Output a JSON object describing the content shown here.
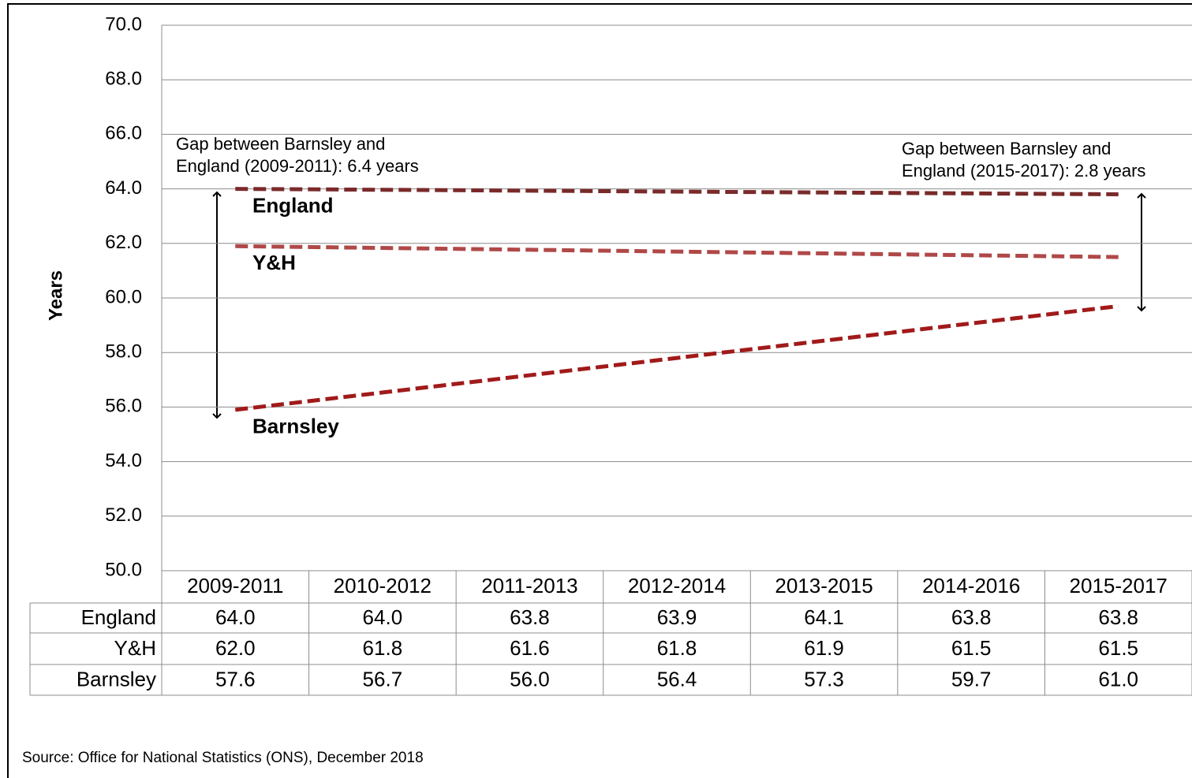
{
  "chart_data": {
    "type": "line",
    "y_label": "Years",
    "categories": [
      "2009-2011",
      "2010-2012",
      "2011-2013",
      "2012-2014",
      "2013-2015",
      "2014-2016",
      "2015-2017"
    ],
    "series": [
      {
        "name": "England",
        "color": "#7a2a2a",
        "values": [
          64.0,
          64.0,
          63.8,
          63.9,
          64.1,
          63.8,
          63.8
        ],
        "value_labels": [
          "64.0",
          "64.0",
          "63.8",
          "63.9",
          "64.1",
          "63.8",
          "63.8"
        ],
        "trend": [
          64.0,
          63.8
        ]
      },
      {
        "name": "Y&H",
        "color": "#b04848",
        "values": [
          62.0,
          61.8,
          61.6,
          61.8,
          61.9,
          61.5,
          61.5
        ],
        "value_labels": [
          "62.0",
          "61.8",
          "61.6",
          "61.8",
          "61.9",
          "61.5",
          "61.5"
        ],
        "trend": [
          61.9,
          61.5
        ]
      },
      {
        "name": "Barnsley",
        "color": "#a11a1a",
        "values": [
          57.6,
          56.7,
          56.0,
          56.4,
          57.3,
          59.7,
          61.0
        ],
        "value_labels": [
          "57.6",
          "56.7",
          "56.0",
          "56.4",
          "57.3",
          "59.7",
          "61.0"
        ],
        "trend": [
          55.9,
          59.7
        ]
      }
    ],
    "ylim": [
      50,
      70
    ],
    "yticks": [
      {
        "value": 50,
        "label": "50.0"
      },
      {
        "value": 52,
        "label": "52.0"
      },
      {
        "value": 54,
        "label": "54.0"
      },
      {
        "value": 56,
        "label": "56.0"
      },
      {
        "value": 58,
        "label": "58.0"
      },
      {
        "value": 60,
        "label": "60.0"
      },
      {
        "value": 62,
        "label": "62.0"
      },
      {
        "value": 64,
        "label": "64.0"
      },
      {
        "value": 66,
        "label": "66.0"
      },
      {
        "value": 68,
        "label": "68.0"
      },
      {
        "value": 70,
        "label": "70.0"
      }
    ],
    "grid": true,
    "annotations": [
      [
        "Gap between Barnsley and",
        "England (2009-2011): 6.4 years"
      ],
      [
        "Gap between Barnsley and",
        "England (2015-2017): 2.8 years"
      ]
    ],
    "source": "Source: Office for National Statistics (ONS), December 2018"
  }
}
